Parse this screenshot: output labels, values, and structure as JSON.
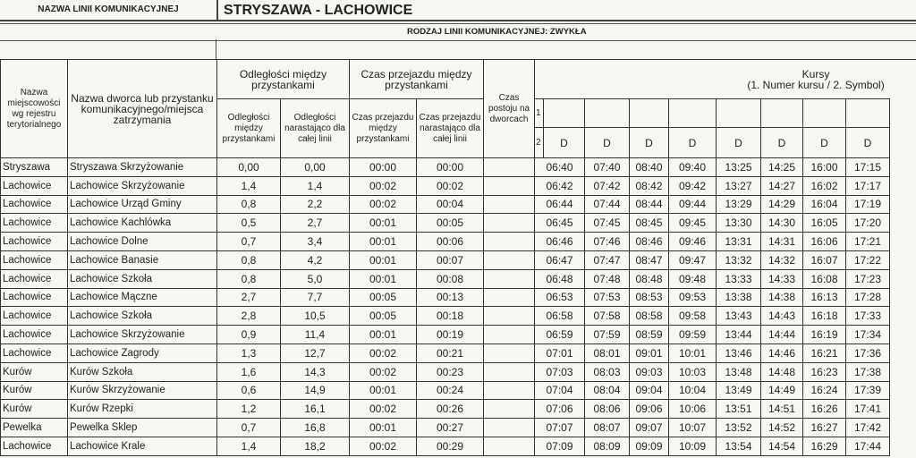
{
  "header": {
    "line_name_label": "NAZWA LINII KOMUNIKACYJNEJ",
    "line_name": "STRYSZAWA - LACHOWICE",
    "line_type": "RODZAJ LINII KOMUNIKACYJNEJ: ZWYKŁA"
  },
  "columns": {
    "locality": "Nazwa miejscowości wg rejestru terytorialnego",
    "stop": "Nazwa dworca lub przystanku komunikacyjnego/miejsca zatrzymania",
    "distance_group": "Odległości między przystankami",
    "distance": "Odległości między przystankami",
    "distance_cum": "Odległości narastająco dla całej linii",
    "time_group": "Czas przejazdu między przystankami",
    "time": "Czas przejazdu między przystankami",
    "time_cum": "Czas przejazdu narastająco dla całej linii",
    "stopover": "Czas postoju na dworcach",
    "courses": "Kursy",
    "courses_sub": "(1. Numer kursu / 2. Symbol)",
    "row1_label": "1",
    "row2_label": "2",
    "course_numbers": [
      "",
      "",
      "",
      "",
      "",
      "",
      "",
      ""
    ],
    "course_symbols": [
      "D",
      "D",
      "D",
      "D",
      "D",
      "D",
      "D",
      "D"
    ]
  },
  "rows": [
    {
      "locality": "Stryszawa",
      "stop": "Stryszawa Skrzyżowanie",
      "dist": "0,00",
      "cum_dist": "0,00",
      "time": "00:00",
      "cum_time": "00:00",
      "times": [
        "06:40",
        "07:40",
        "08:40",
        "09:40",
        "13:25",
        "14:25",
        "16:00",
        "17:15"
      ]
    },
    {
      "locality": "Lachowice",
      "stop": "Lachowice Skrzyżowanie",
      "dist": "1,4",
      "cum_dist": "1,4",
      "time": "00:02",
      "cum_time": "00:02",
      "times": [
        "06:42",
        "07:42",
        "08:42",
        "09:42",
        "13:27",
        "14:27",
        "16:02",
        "17:17"
      ]
    },
    {
      "locality": "Lachowice",
      "stop": "Lachowice Urząd Gminy",
      "dist": "0,8",
      "cum_dist": "2,2",
      "time": "00:02",
      "cum_time": "00:04",
      "times": [
        "06:44",
        "07:44",
        "08:44",
        "09:44",
        "13:29",
        "14:29",
        "16:04",
        "17:19"
      ]
    },
    {
      "locality": "Lachowice",
      "stop": "Lachowice Kachlówka",
      "dist": "0,5",
      "cum_dist": "2,7",
      "time": "00:01",
      "cum_time": "00:05",
      "times": [
        "06:45",
        "07:45",
        "08:45",
        "09:45",
        "13:30",
        "14:30",
        "16:05",
        "17:20"
      ]
    },
    {
      "locality": "Lachowice",
      "stop": "Lachowice Dolne",
      "dist": "0,7",
      "cum_dist": "3,4",
      "time": "00:01",
      "cum_time": "00:06",
      "times": [
        "06:46",
        "07:46",
        "08:46",
        "09:46",
        "13:31",
        "14:31",
        "16:06",
        "17:21"
      ]
    },
    {
      "locality": "Lachowice",
      "stop": "Lachowice Banasie",
      "dist": "0,8",
      "cum_dist": "4,2",
      "time": "00:01",
      "cum_time": "00:07",
      "times": [
        "06:47",
        "07:47",
        "08:47",
        "09:47",
        "13:32",
        "14:32",
        "16:07",
        "17:22"
      ]
    },
    {
      "locality": "Lachowice",
      "stop": "Lachowice Szkoła",
      "dist": "0,8",
      "cum_dist": "5,0",
      "time": "00:01",
      "cum_time": "00:08",
      "times": [
        "06:48",
        "07:48",
        "08:48",
        "09:48",
        "13:33",
        "14:33",
        "16:08",
        "17:23"
      ]
    },
    {
      "locality": "Lachowice",
      "stop": "Lachowice Mączne",
      "dist": "2,7",
      "cum_dist": "7,7",
      "time": "00:05",
      "cum_time": "00:13",
      "times": [
        "06:53",
        "07:53",
        "08:53",
        "09:53",
        "13:38",
        "14:38",
        "16:13",
        "17:28"
      ]
    },
    {
      "locality": "Lachowice",
      "stop": "Lachowice Szkoła",
      "dist": "2,8",
      "cum_dist": "10,5",
      "time": "00:05",
      "cum_time": "00:18",
      "times": [
        "06:58",
        "07:58",
        "08:58",
        "09:58",
        "13:43",
        "14:43",
        "16:18",
        "17:33"
      ]
    },
    {
      "locality": "Lachowice",
      "stop": "Lachowice Skrzyżowanie",
      "dist": "0,9",
      "cum_dist": "11,4",
      "time": "00:01",
      "cum_time": "00:19",
      "times": [
        "06:59",
        "07:59",
        "08:59",
        "09:59",
        "13:44",
        "14:44",
        "16:19",
        "17:34"
      ]
    },
    {
      "locality": "Lachowice",
      "stop": "Lachowice Zagrody",
      "dist": "1,3",
      "cum_dist": "12,7",
      "time": "00:02",
      "cum_time": "00:21",
      "times": [
        "07:01",
        "08:01",
        "09:01",
        "10:01",
        "13:46",
        "14:46",
        "16:21",
        "17:36"
      ]
    },
    {
      "locality": "Kurów",
      "stop": "Kurów Szkoła",
      "dist": "1,6",
      "cum_dist": "14,3",
      "time": "00:02",
      "cum_time": "00:23",
      "times": [
        "07:03",
        "08:03",
        "09:03",
        "10:03",
        "13:48",
        "14:48",
        "16:23",
        "17:38"
      ]
    },
    {
      "locality": "Kurów",
      "stop": "Kurów Skrzyżowanie",
      "dist": "0,6",
      "cum_dist": "14,9",
      "time": "00:01",
      "cum_time": "00:24",
      "times": [
        "07:04",
        "08:04",
        "09:04",
        "10:04",
        "13:49",
        "14:49",
        "16:24",
        "17:39"
      ]
    },
    {
      "locality": "Kurów",
      "stop": "Kurów Rzepki",
      "dist": "1,2",
      "cum_dist": "16,1",
      "time": "00:02",
      "cum_time": "00:26",
      "times": [
        "07:06",
        "08:06",
        "09:06",
        "10:06",
        "13:51",
        "14:51",
        "16:26",
        "17:41"
      ]
    },
    {
      "locality": "Pewelka",
      "stop": "Pewelka Sklep",
      "dist": "0,7",
      "cum_dist": "16,8",
      "time": "00:01",
      "cum_time": "00:27",
      "times": [
        "07:07",
        "08:07",
        "09:07",
        "10:07",
        "13:52",
        "14:52",
        "16:27",
        "17:42"
      ]
    },
    {
      "locality": "Lachowice",
      "stop": "Lachowice Krale",
      "dist": "1,4",
      "cum_dist": "18,2",
      "time": "00:02",
      "cum_time": "00:29",
      "times": [
        "07:09",
        "08:09",
        "09:09",
        "10:09",
        "13:54",
        "14:54",
        "16:29",
        "17:44"
      ]
    }
  ]
}
